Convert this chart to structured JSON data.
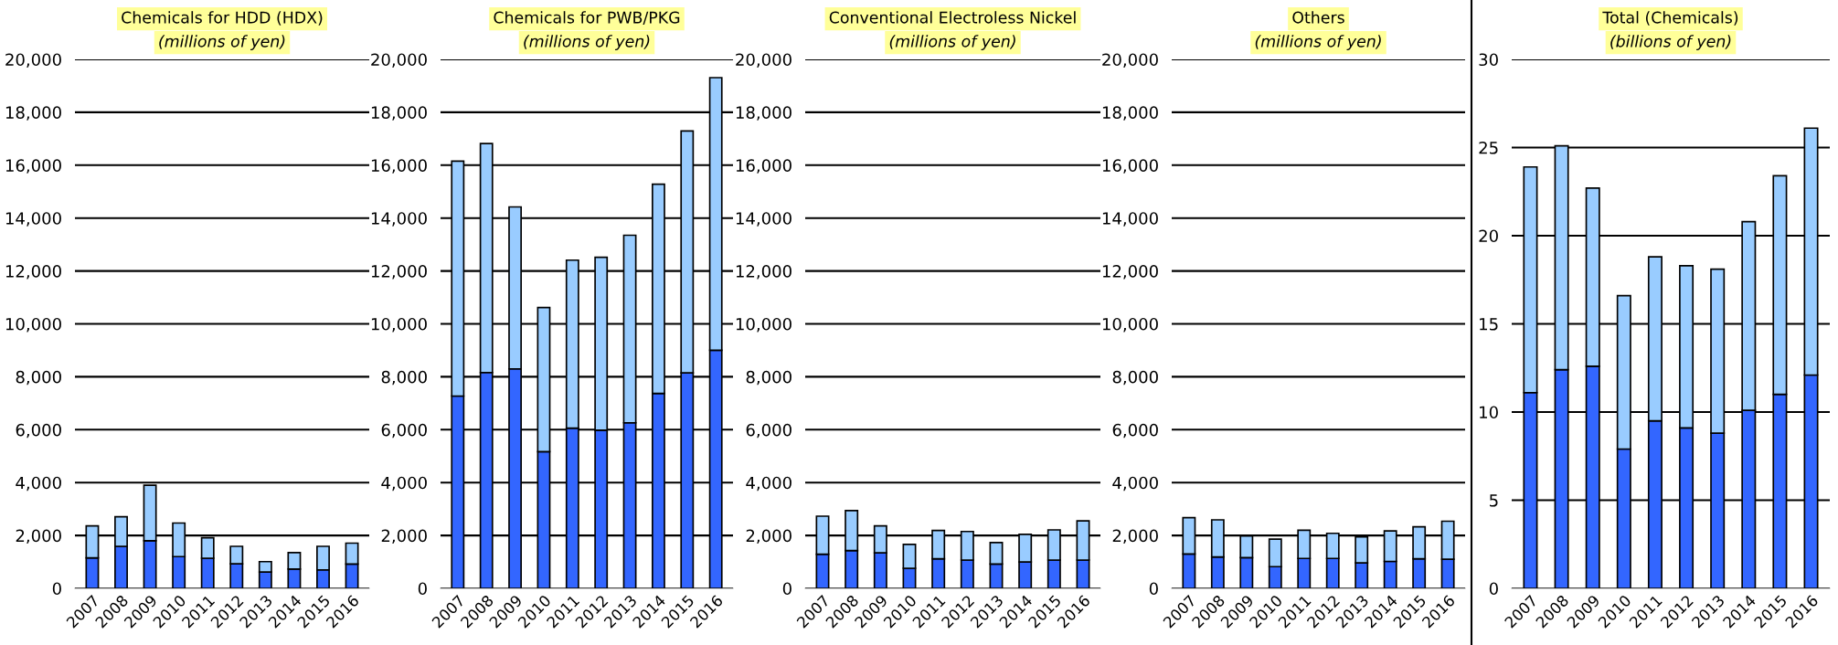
{
  "chart_data": [
    {
      "type": "bar",
      "stacked": true,
      "grid": "y",
      "title": "Chemicals for HDD (HDX)",
      "subtitle": "(millions of yen)",
      "categories": [
        "2007",
        "2008",
        "2009",
        "2010",
        "2011",
        "2012",
        "2013",
        "2014",
        "2015",
        "2016"
      ],
      "series": [
        {
          "color": "#3366ff",
          "values": [
            1150,
            1590,
            1800,
            1200,
            1140,
            930,
            620,
            730,
            700,
            920
          ]
        },
        {
          "color": "#99ccff",
          "values": [
            1210,
            1120,
            2100,
            1270,
            770,
            660,
            390,
            620,
            890,
            790
          ]
        }
      ],
      "ylim": [
        0,
        20000
      ],
      "yticks": [
        0,
        {
          "value": 2000,
          "label": "2,000"
        },
        {
          "value": 4000,
          "label": "4,000"
        },
        {
          "value": 6000,
          "label": "6,000"
        },
        {
          "value": 8000,
          "label": "8,000"
        },
        {
          "value": 10000,
          "label": "10,000"
        },
        {
          "value": 12000,
          "label": "12,000"
        },
        {
          "value": 14000,
          "label": "14,000"
        },
        {
          "value": 16000,
          "label": "16,000"
        },
        {
          "value": 18000,
          "label": "18,000"
        },
        {
          "value": 20000,
          "label": "20,000"
        }
      ]
    },
    {
      "type": "bar",
      "stacked": true,
      "grid": "y",
      "title": "Chemicals for PWB/PKG",
      "subtitle": "(millions of yen)",
      "categories": [
        "2007",
        "2008",
        "2009",
        "2010",
        "2011",
        "2012",
        "2013",
        "2014",
        "2015",
        "2016"
      ],
      "series": [
        {
          "color": "#3366ff",
          "values": [
            7270,
            8160,
            8300,
            5170,
            6060,
            5980,
            6260,
            7370,
            8150,
            9000
          ]
        },
        {
          "color": "#99ccff",
          "values": [
            8880,
            8660,
            6120,
            5450,
            6350,
            6540,
            7090,
            7910,
            9140,
            10310
          ]
        }
      ],
      "ylim": [
        0,
        20000
      ],
      "yticks": [
        0,
        {
          "value": 2000,
          "label": "2,000"
        },
        {
          "value": 4000,
          "label": "4,000"
        },
        {
          "value": 6000,
          "label": "6,000"
        },
        {
          "value": 8000,
          "label": "8,000"
        },
        {
          "value": 10000,
          "label": "10,000"
        },
        {
          "value": 12000,
          "label": "12,000"
        },
        {
          "value": 14000,
          "label": "14,000"
        },
        {
          "value": 16000,
          "label": "16,000"
        },
        {
          "value": 18000,
          "label": "18,000"
        },
        {
          "value": 20000,
          "label": "20,000"
        }
      ]
    },
    {
      "type": "bar",
      "stacked": true,
      "grid": "y",
      "title": "Conventional Electroless Nickel",
      "subtitle": "(millions of yen)",
      "categories": [
        "2007",
        "2008",
        "2009",
        "2010",
        "2011",
        "2012",
        "2013",
        "2014",
        "2015",
        "2016"
      ],
      "series": [
        {
          "color": "#3366ff",
          "values": [
            1290,
            1430,
            1340,
            760,
            1120,
            1070,
            920,
            1000,
            1070,
            1070
          ]
        },
        {
          "color": "#99ccff",
          "values": [
            1440,
            1510,
            1020,
            900,
            1070,
            1080,
            810,
            1040,
            1140,
            1480
          ]
        }
      ],
      "ylim": [
        0,
        20000
      ],
      "yticks": [
        0,
        {
          "value": 2000,
          "label": "2,000"
        },
        {
          "value": 4000,
          "label": "4,000"
        },
        {
          "value": 6000,
          "label": "6,000"
        },
        {
          "value": 8000,
          "label": "8,000"
        },
        {
          "value": 10000,
          "label": "10,000"
        },
        {
          "value": 12000,
          "label": "12,000"
        },
        {
          "value": 14000,
          "label": "14,000"
        },
        {
          "value": 16000,
          "label": "16,000"
        },
        {
          "value": 18000,
          "label": "18,000"
        },
        {
          "value": 20000,
          "label": "20,000"
        }
      ]
    },
    {
      "type": "bar",
      "stacked": true,
      "grid": "y",
      "title": "Others",
      "subtitle": "(millions of yen)",
      "categories": [
        "2007",
        "2008",
        "2009",
        "2010",
        "2011",
        "2012",
        "2013",
        "2014",
        "2015",
        "2016"
      ],
      "series": [
        {
          "color": "#3366ff",
          "values": [
            1300,
            1190,
            1160,
            820,
            1130,
            1130,
            960,
            1020,
            1120,
            1100
          ]
        },
        {
          "color": "#99ccff",
          "values": [
            1370,
            1400,
            820,
            1040,
            1070,
            950,
            990,
            1150,
            1210,
            1440
          ]
        }
      ],
      "ylim": [
        0,
        20000
      ],
      "yticks": [
        0,
        {
          "value": 2000,
          "label": "2,000"
        },
        {
          "value": 4000,
          "label": "4,000"
        },
        {
          "value": 6000,
          "label": "6,000"
        },
        {
          "value": 8000,
          "label": "8,000"
        },
        {
          "value": 10000,
          "label": "10,000"
        },
        {
          "value": 12000,
          "label": "12,000"
        },
        {
          "value": 14000,
          "label": "14,000"
        },
        {
          "value": 16000,
          "label": "16,000"
        },
        {
          "value": 18000,
          "label": "18,000"
        },
        {
          "value": 20000,
          "label": "20,000"
        }
      ]
    },
    {
      "type": "bar",
      "stacked": true,
      "grid": "y",
      "title": "Total (Chemicals)",
      "subtitle": "(billions of yen)",
      "categories": [
        "2007",
        "2008",
        "2009",
        "2010",
        "2011",
        "2012",
        "2013",
        "2014",
        "2015",
        "2016"
      ],
      "series": [
        {
          "color": "#3366ff",
          "values": [
            11.1,
            12.4,
            12.6,
            7.9,
            9.5,
            9.1,
            8.8,
            10.1,
            11.0,
            12.1
          ]
        },
        {
          "color": "#99ccff",
          "values": [
            12.8,
            12.7,
            10.1,
            8.7,
            9.3,
            9.2,
            9.3,
            10.7,
            12.4,
            14.0
          ]
        }
      ],
      "ylim": [
        0,
        30
      ],
      "yticks": [
        0,
        5,
        10,
        15,
        20,
        25,
        30
      ]
    }
  ]
}
